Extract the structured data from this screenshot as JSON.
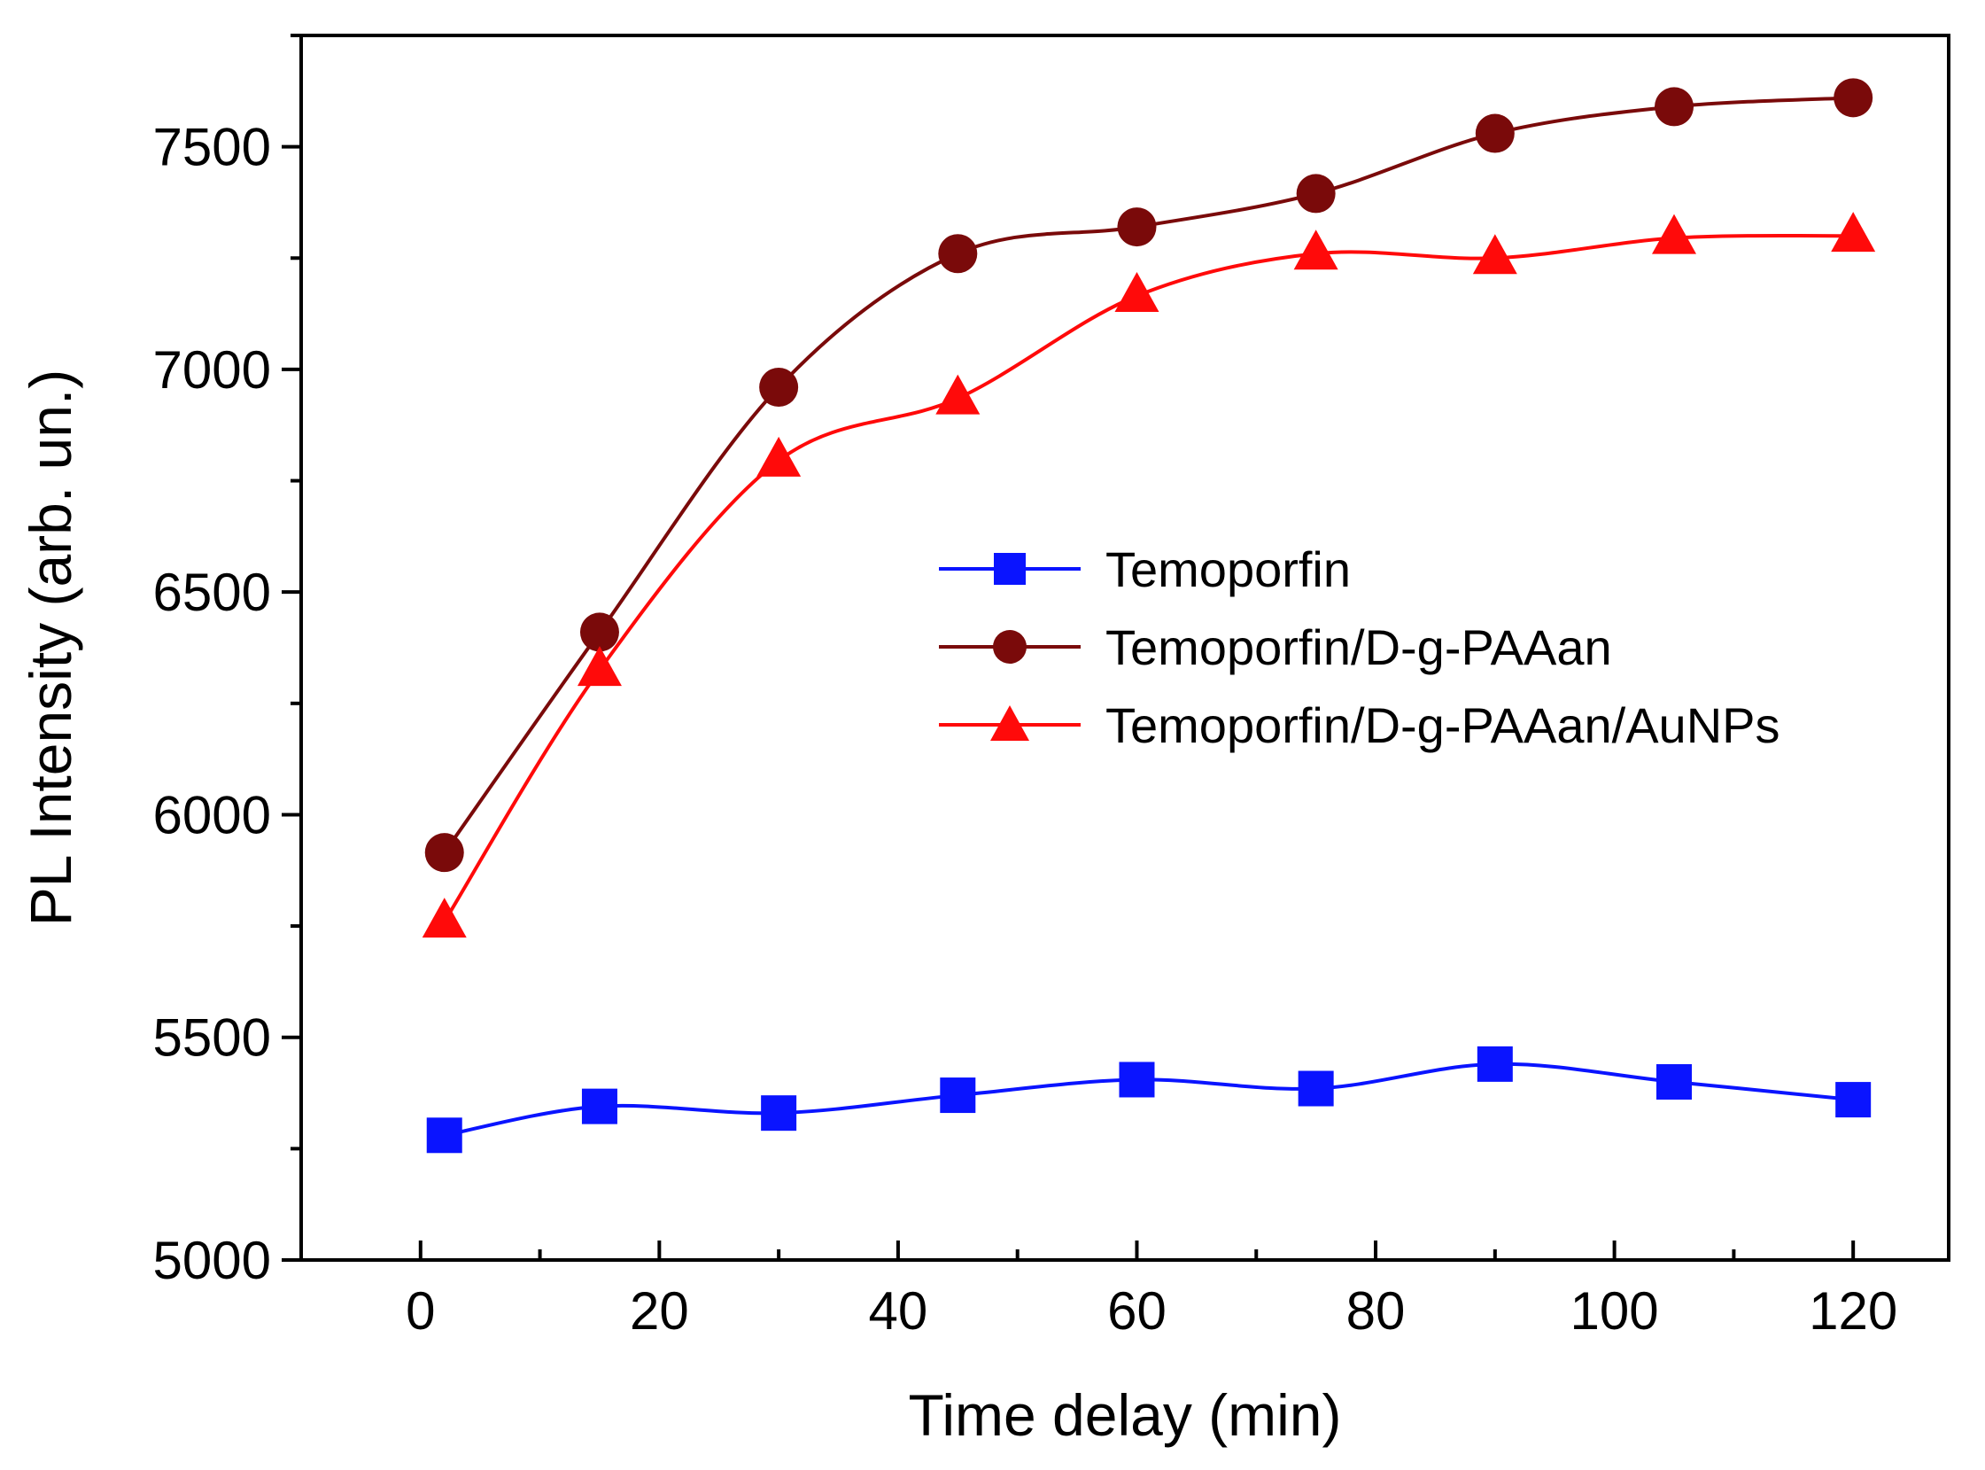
{
  "chart_data": {
    "type": "line",
    "title": "",
    "xlabel": "Time delay (min)",
    "ylabel": "PL Intensity (arb. un.)",
    "xlim": [
      -10,
      128
    ],
    "ylim": [
      5000,
      7750
    ],
    "xticks": [
      0,
      20,
      40,
      60,
      80,
      100,
      120
    ],
    "xticks_minor": [
      10,
      30,
      50,
      70,
      90,
      110
    ],
    "yticks": [
      5000,
      5500,
      6000,
      6500,
      7000,
      7500
    ],
    "yticks_minor": [
      5250,
      5750,
      6250,
      6750,
      7250,
      7750
    ],
    "x": [
      2,
      15,
      30,
      45,
      60,
      75,
      90,
      105,
      120
    ],
    "grid": false,
    "legend_position": "center-right",
    "series": [
      {
        "name": "Temoporfin",
        "marker": "square",
        "color": "#0a14ff",
        "values": [
          5280,
          5345,
          5330,
          5370,
          5405,
          5385,
          5440,
          5400,
          5360
        ]
      },
      {
        "name": "Temoporfin/D-g-PAAan",
        "marker": "circle",
        "color": "#7a0a0a",
        "values": [
          5915,
          6410,
          6960,
          7260,
          7320,
          7395,
          7530,
          7590,
          7610
        ]
      },
      {
        "name": "Temoporfin/D-g-PAAan/AuNPs",
        "marker": "triangle",
        "color": "#ff0a0a",
        "values": [
          5760,
          6325,
          6795,
          6935,
          7165,
          7260,
          7250,
          7295,
          7300
        ]
      }
    ]
  }
}
